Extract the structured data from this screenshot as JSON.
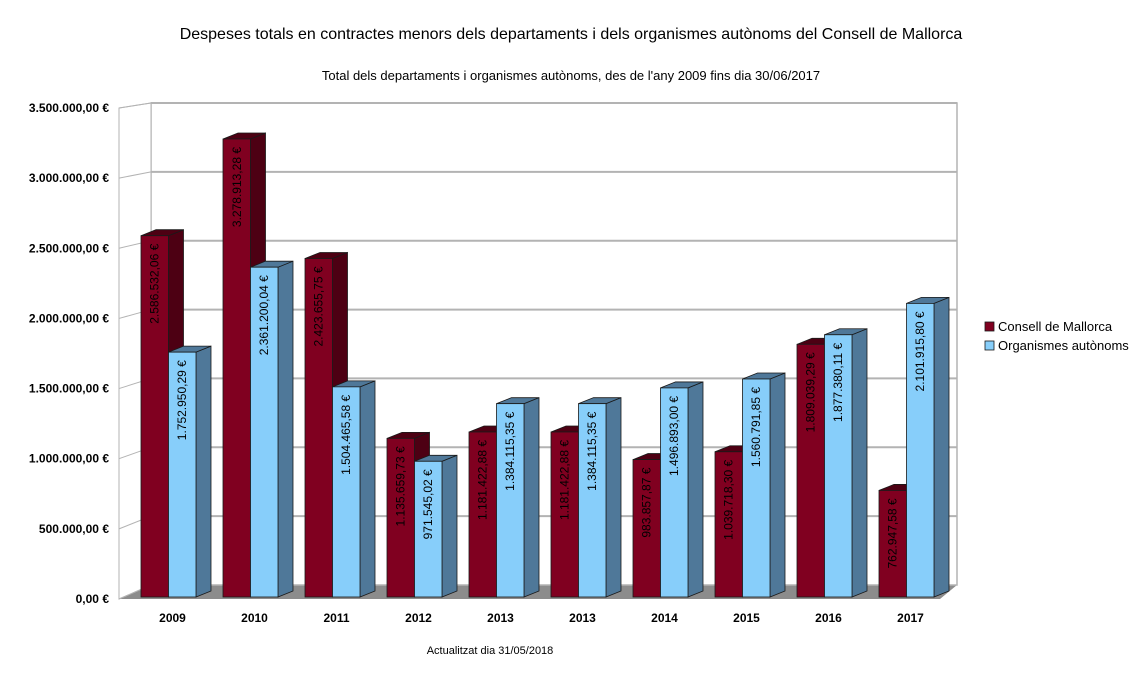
{
  "chart_data": {
    "type": "bar",
    "style": "3d-clustered-column",
    "title": "Despeses totals en contractes menors dels departaments i dels organismes autònoms del Consell de Mallorca",
    "subtitle": "Total dels departaments i organismes autònoms, des de l'any 2009 fins dia 30/06/2017",
    "footnote": "Actualitzat dia 31/05/2018",
    "xlabel": "",
    "ylabel": "",
    "ylim": [
      0,
      3500000
    ],
    "yticks": [
      0,
      500000,
      1000000,
      1500000,
      2000000,
      2500000,
      3000000,
      3500000
    ],
    "ytick_labels": [
      "0,00 €",
      "500.000,00 €",
      "1.000.000,00 €",
      "1.500.000,00 €",
      "2.000.000,00 €",
      "2.500.000,00 €",
      "3.000.000,00 €",
      "3.500.000,00 €"
    ],
    "grid": true,
    "legend_position": "right",
    "categories": [
      "2009",
      "2010",
      "2011",
      "2012",
      "2013",
      "2013",
      "2014",
      "2015",
      "2016",
      "2017"
    ],
    "series": [
      {
        "name": "Consell de Mallorca",
        "color": "#800020",
        "side_color": "#4d0013",
        "values": [
          2586532.06,
          3278913.28,
          2423655.75,
          1135659.73,
          1181422.88,
          1181422.88,
          983857.87,
          1039718.3,
          1809039.29,
          762947.58
        ],
        "labels": [
          "2.586.532,06 €",
          "3.278.913,28 €",
          "2.423.655,75 €",
          "1.135.659,73 €",
          "1.181.422,88 €",
          "1.181.422,88 €",
          "983.857,87 €",
          "1.039.718,30 €",
          "1.809.039,29 €",
          "762.947,58 €"
        ]
      },
      {
        "name": "Organismes autònoms",
        "color": "#87cefa",
        "side_color": "#4f7899",
        "values": [
          1752950.29,
          2361200.04,
          1504465.58,
          971545.02,
          1384115.35,
          1384115.35,
          1496893.0,
          1560791.85,
          1877380.11,
          2101915.8
        ],
        "labels": [
          "1.752.950,29 €",
          "2.361.200,04 €",
          "1.504.465,58 €",
          "971.545,02 €",
          "1.384.115,35 €",
          "1.384.115,35 €",
          "1.496.893,00 €",
          "1.560.791,85 €",
          "1.877.380,11 €",
          "2.101.915,80 €"
        ]
      }
    ]
  }
}
